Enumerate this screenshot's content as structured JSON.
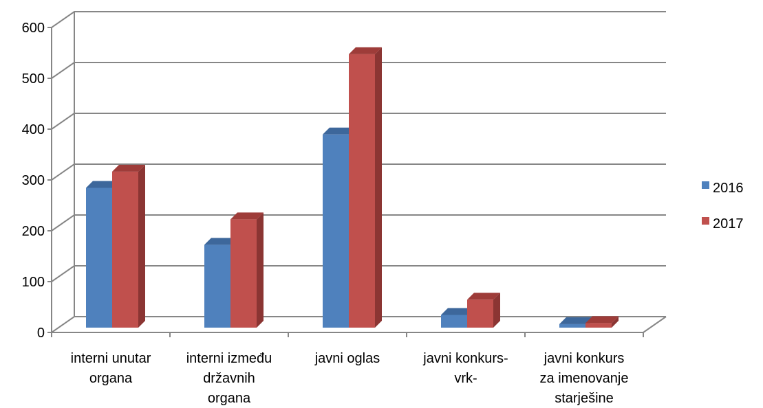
{
  "chart_data": {
    "type": "bar",
    "style": "3d-clustered-column",
    "title": "",
    "xlabel": "",
    "ylabel": "",
    "ylim": [
      0,
      600
    ],
    "yticks": [
      0,
      100,
      200,
      300,
      400,
      500,
      600
    ],
    "grid": true,
    "legend_position": "right",
    "categories": [
      [
        "interni unutar",
        "organa"
      ],
      [
        "interni između",
        "državnih",
        "organa"
      ],
      [
        "javni oglas"
      ],
      [
        "javni konkurs-",
        "vrk-"
      ],
      [
        "javni konkurs",
        "za imenovanje",
        "starješine"
      ]
    ],
    "series": [
      {
        "name": "2016",
        "color": "#4f81bd",
        "side": "#3a5f8c",
        "top": "#3d679b",
        "values": [
          275,
          163,
          380,
          25,
          7
        ]
      },
      {
        "name": "2017",
        "color": "#c0504d",
        "side": "#8b3533",
        "top": "#9e3c39",
        "values": [
          307,
          213,
          538,
          55,
          9
        ]
      }
    ]
  }
}
